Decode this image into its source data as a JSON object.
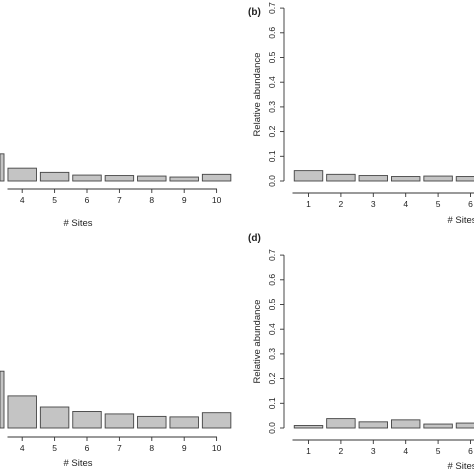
{
  "chart_data": [
    {
      "id": "a",
      "type": "bar",
      "panel_label": "",
      "xlabel": "# Sites",
      "ylabel": "",
      "ylim": [
        0,
        0.7
      ],
      "bar_color": "#c4c4c4",
      "categories": [
        "4",
        "5",
        "6",
        "7",
        "8",
        "9",
        "10"
      ],
      "values": [
        0.052,
        0.035,
        0.024,
        0.022,
        0.02,
        0.016,
        0.027
      ],
      "yticks": [],
      "partial_left_bar_value": 0.11
    },
    {
      "id": "b",
      "type": "bar",
      "panel_label": "(b)",
      "xlabel": "# Sites",
      "ylabel": "Relative abundance",
      "ylim": [
        0,
        0.7
      ],
      "bar_color": "#c4c4c4",
      "categories": [
        "1",
        "2",
        "3",
        "4",
        "5",
        "6"
      ],
      "values": [
        0.042,
        0.027,
        0.022,
        0.018,
        0.02,
        0.018
      ],
      "yticks": [
        "0.0",
        "0.1",
        "0.2",
        "0.3",
        "0.4",
        "0.5",
        "0.6",
        "0.7"
      ]
    },
    {
      "id": "c",
      "type": "bar",
      "panel_label": "",
      "xlabel": "# Sites",
      "ylabel": "",
      "ylim": [
        0,
        0.7
      ],
      "bar_color": "#c4c4c4",
      "categories": [
        "4",
        "5",
        "6",
        "7",
        "8",
        "9",
        "10"
      ],
      "values": [
        0.13,
        0.085,
        0.067,
        0.057,
        0.047,
        0.045,
        0.062
      ],
      "yticks": [],
      "partial_left_bar_value": 0.23
    },
    {
      "id": "d",
      "type": "bar",
      "panel_label": "(d)",
      "xlabel": "# Sites",
      "ylabel": "Relative abundance",
      "ylim": [
        0,
        0.7
      ],
      "bar_color": "#c4c4c4",
      "categories": [
        "1",
        "2",
        "3",
        "4",
        "5",
        "6"
      ],
      "values": [
        0.01,
        0.038,
        0.025,
        0.033,
        0.016,
        0.02
      ],
      "yticks": [
        "0.0",
        "0.1",
        "0.2",
        "0.3",
        "0.4",
        "0.5",
        "0.6",
        "0.7"
      ]
    }
  ]
}
